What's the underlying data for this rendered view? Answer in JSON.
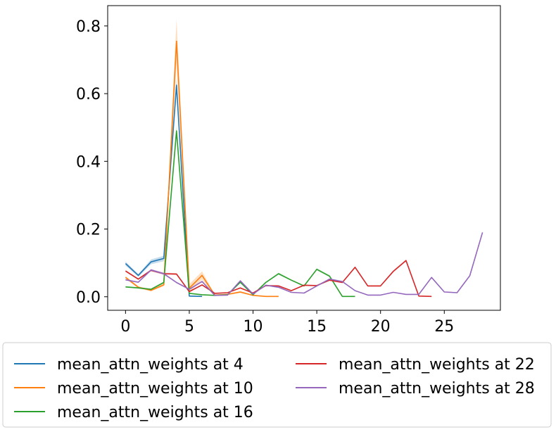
{
  "chart_data": {
    "type": "line",
    "title": "",
    "xlabel": "",
    "ylabel": "",
    "xlim": [
      -1.4,
      29.4
    ],
    "ylim": [
      -0.04,
      0.86
    ],
    "x_ticks": [
      "0",
      "5",
      "10",
      "15",
      "20",
      "25"
    ],
    "x_tick_values": [
      0,
      5,
      10,
      15,
      20,
      25
    ],
    "y_ticks": [
      "0.0",
      "0.2",
      "0.4",
      "0.6",
      "0.8"
    ],
    "y_tick_values": [
      0.0,
      0.2,
      0.4,
      0.6,
      0.8
    ],
    "grid": false,
    "legend_placement": "below",
    "series": [
      {
        "name": "mean_attn_weights at 4",
        "color": "#1f77b4",
        "x": [
          0,
          1,
          2,
          3,
          4,
          5,
          6
        ],
        "values": [
          0.098,
          0.063,
          0.103,
          0.113,
          0.625,
          0.002,
          0.001
        ],
        "band": [
          0.006,
          0.004,
          0.007,
          0.008,
          0.02,
          0.002,
          0.001
        ]
      },
      {
        "name": "mean_attn_weights at 10",
        "color": "#ff7f0e",
        "x": [
          0,
          1,
          2,
          3,
          4,
          5,
          6,
          7,
          8,
          9,
          10,
          11,
          12
        ],
        "values": [
          0.057,
          0.028,
          0.019,
          0.035,
          0.755,
          0.025,
          0.063,
          0.005,
          0.007,
          0.014,
          0.004,
          0.001,
          0.001
        ],
        "band": [
          0.004,
          0.003,
          0.003,
          0.004,
          0.065,
          0.012,
          0.012,
          0.002,
          0.002,
          0.003,
          0.001,
          0.001,
          0.001
        ]
      },
      {
        "name": "mean_attn_weights at 16",
        "color": "#2ca02c",
        "x": [
          0,
          1,
          2,
          3,
          4,
          5,
          6,
          7,
          8,
          9,
          10,
          11,
          12,
          13,
          14,
          15,
          16,
          17,
          18
        ],
        "values": [
          0.029,
          0.026,
          0.022,
          0.042,
          0.49,
          0.01,
          0.006,
          0.004,
          0.006,
          0.043,
          0.006,
          0.042,
          0.068,
          0.049,
          0.032,
          0.081,
          0.061,
          0.001,
          0.001
        ],
        "band": [
          0.002,
          0.002,
          0.002,
          0.003,
          0.015,
          0.002,
          0.001,
          0.001,
          0.001,
          0.003,
          0.001,
          0.002,
          0.003,
          0.002,
          0.002,
          0.003,
          0.003,
          0.001,
          0.001
        ]
      },
      {
        "name": "mean_attn_weights at 22",
        "color": "#d62728",
        "x": [
          0,
          1,
          2,
          3,
          4,
          5,
          6,
          7,
          8,
          9,
          10,
          11,
          12,
          13,
          14,
          15,
          16,
          17,
          18,
          19,
          20,
          21,
          22,
          23,
          24
        ],
        "values": [
          0.076,
          0.052,
          0.078,
          0.068,
          0.067,
          0.015,
          0.035,
          0.01,
          0.012,
          0.026,
          0.011,
          0.033,
          0.032,
          0.018,
          0.034,
          0.033,
          0.049,
          0.042,
          0.087,
          0.032,
          0.032,
          0.075,
          0.107,
          0.002,
          0.001
        ],
        "band": [
          0.003,
          0.002,
          0.003,
          0.003,
          0.003,
          0.002,
          0.002,
          0.001,
          0.001,
          0.002,
          0.001,
          0.002,
          0.002,
          0.001,
          0.002,
          0.002,
          0.002,
          0.002,
          0.003,
          0.002,
          0.002,
          0.003,
          0.003,
          0.001,
          0.001
        ]
      },
      {
        "name": "mean_attn_weights at 28",
        "color": "#9467bd",
        "x": [
          0,
          1,
          2,
          3,
          4,
          5,
          6,
          7,
          8,
          9,
          10,
          11,
          12,
          13,
          14,
          15,
          16,
          17,
          18,
          19,
          20,
          21,
          22,
          23,
          24,
          25,
          26,
          27,
          28
        ],
        "values": [
          0.05,
          0.043,
          0.079,
          0.068,
          0.042,
          0.022,
          0.045,
          0.004,
          0.005,
          0.047,
          0.008,
          0.034,
          0.028,
          0.013,
          0.011,
          0.032,
          0.052,
          0.045,
          0.018,
          0.005,
          0.005,
          0.013,
          0.007,
          0.007,
          0.057,
          0.014,
          0.012,
          0.062,
          0.19
        ],
        "band": [
          0.002,
          0.002,
          0.003,
          0.003,
          0.002,
          0.002,
          0.002,
          0.001,
          0.001,
          0.002,
          0.001,
          0.002,
          0.002,
          0.001,
          0.001,
          0.002,
          0.002,
          0.002,
          0.001,
          0.001,
          0.001,
          0.001,
          0.001,
          0.001,
          0.002,
          0.001,
          0.001,
          0.002,
          0.003
        ]
      }
    ]
  }
}
